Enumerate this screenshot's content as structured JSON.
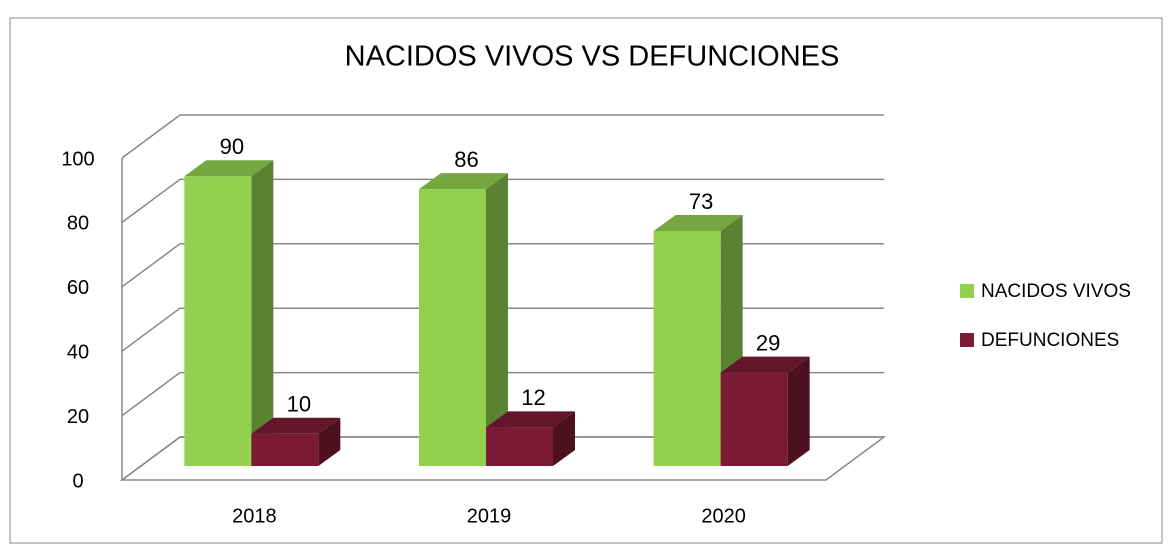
{
  "chart_data": {
    "type": "bar3d",
    "title": "NACIDOS VIVOS VS DEFUNCIONES",
    "categories": [
      "2018",
      "2019",
      "2020"
    ],
    "series": [
      {
        "name": "NACIDOS VIVOS",
        "color": "#92d050",
        "values": [
          90,
          86,
          73
        ]
      },
      {
        "name": "DEFUNCIONES",
        "color": "#7b1a36",
        "values": [
          10,
          12,
          29
        ]
      }
    ],
    "ylim": [
      0,
      100
    ],
    "yticks": [
      0,
      20,
      40,
      60,
      80,
      100
    ],
    "grid": true,
    "legend": "right"
  }
}
